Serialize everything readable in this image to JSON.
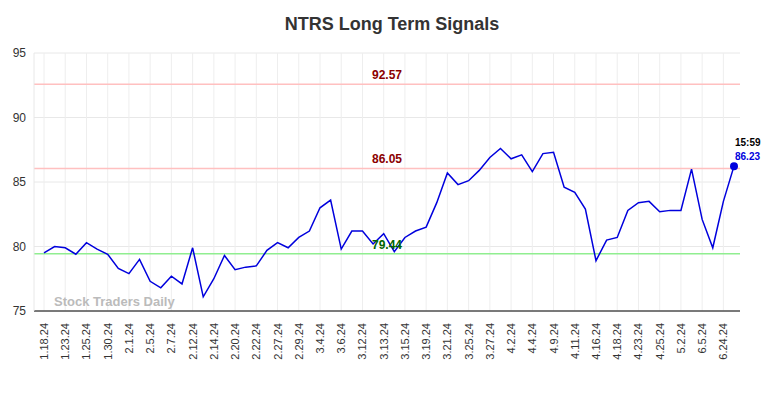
{
  "chart_data": {
    "type": "line",
    "title": "NTRS Long Term Signals",
    "watermark": "Stock Traders Daily",
    "annotations": [
      {
        "text": "15:59"
      }
    ],
    "categories": [
      "1.18.24",
      null,
      "1.23.24",
      null,
      "1.25.24",
      null,
      "1.30.24",
      null,
      "2.1.24",
      null,
      "2.5.24",
      null,
      "2.7.24",
      null,
      "2.12.24",
      null,
      "2.14.24",
      null,
      "2.20.24",
      null,
      "2.22.24",
      null,
      "2.27.24",
      null,
      "2.29.24",
      null,
      "3.4.24",
      null,
      "3.6.24",
      null,
      "3.12.24",
      null,
      "3.13.24",
      null,
      "3.15.24",
      null,
      "3.19.24",
      null,
      "3.21.24",
      null,
      "3.25.24",
      null,
      "3.27.24",
      null,
      "4.2.24",
      null,
      "4.4.24",
      null,
      "4.9.24",
      null,
      "4.11.24",
      null,
      "4.16.24",
      null,
      "4.18.24",
      null,
      "4.23.24",
      null,
      "4.25.24",
      null,
      "5.2.24",
      null,
      "6.5.24",
      null,
      "6.24.24",
      null
    ],
    "values": [
      79.5,
      80.0,
      79.9,
      79.4,
      80.3,
      79.8,
      79.4,
      78.3,
      77.9,
      79.0,
      77.3,
      76.8,
      77.7,
      77.1,
      79.9,
      76.1,
      77.5,
      79.3,
      78.2,
      78.4,
      78.5,
      79.7,
      80.3,
      79.9,
      80.7,
      81.2,
      83.0,
      83.6,
      79.8,
      81.2,
      81.2,
      80.2,
      81.0,
      79.6,
      80.7,
      81.2,
      81.5,
      83.4,
      85.7,
      84.8,
      85.1,
      85.9,
      86.9,
      87.6,
      86.8,
      87.1,
      85.8,
      87.2,
      87.3,
      84.6,
      84.2,
      82.9,
      78.9,
      80.5,
      80.7,
      82.8,
      83.4,
      83.5,
      82.7,
      82.8,
      82.8,
      86.0,
      82.1,
      79.9,
      83.5,
      86.23
    ],
    "color": "#0000dd",
    "ylim": [
      75,
      95
    ],
    "yticks": [
      75,
      80,
      85,
      90,
      95
    ],
    "grid": true,
    "reference_lines": [
      {
        "value": 92.57,
        "color": "#ffc0c0",
        "label_color": "#8b0000"
      },
      {
        "value": 86.05,
        "color": "#ffc0c0",
        "label_color": "#8b0000"
      },
      {
        "value": 79.44,
        "color": "#90ee90",
        "label_color": "#006400"
      }
    ]
  }
}
